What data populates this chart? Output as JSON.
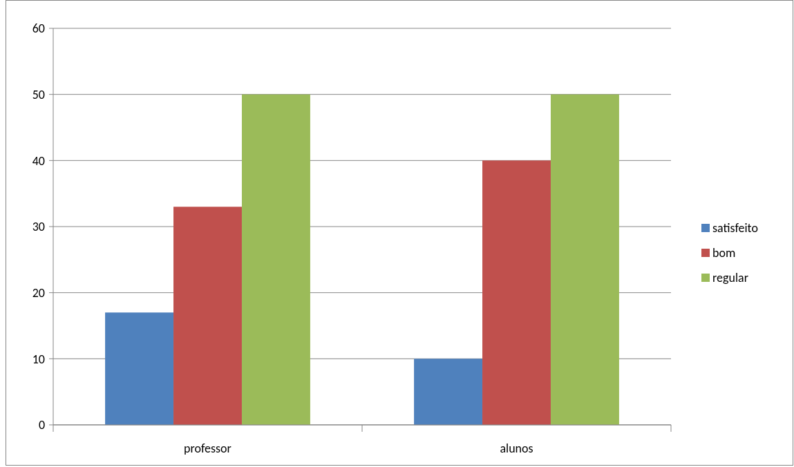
{
  "chart_data": {
    "type": "bar",
    "categories": [
      "professor",
      "alunos"
    ],
    "series": [
      {
        "name": "satisfeito",
        "color": "#4f81bd",
        "values": [
          17,
          10
        ]
      },
      {
        "name": "bom",
        "color": "#c0504d",
        "values": [
          33,
          40
        ]
      },
      {
        "name": "regular",
        "color": "#9bbb59",
        "values": [
          50,
          50
        ]
      }
    ],
    "ylim": [
      0,
      60
    ],
    "yticks": [
      0,
      10,
      20,
      30,
      40,
      50,
      60
    ],
    "grid": "y",
    "legend": "right"
  }
}
